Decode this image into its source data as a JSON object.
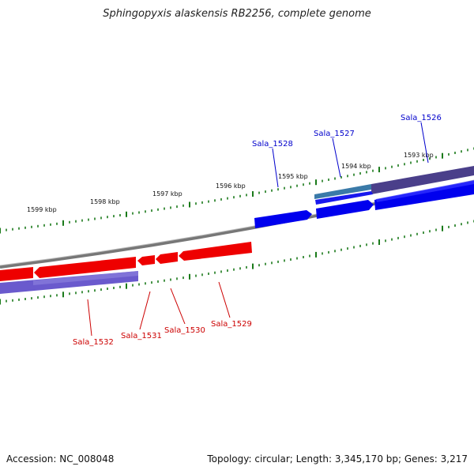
{
  "title": "Sphingopyxis alaskensis RB2256, complete genome",
  "accession": "Accession: NC_008048",
  "summary": "Topology: circular; Length: 3,345,170 bp; Genes: 3,217",
  "colors": {
    "forward_gene": "#0000ee",
    "reverse_gene": "#ee0000",
    "tick": "#1a7a1a",
    "backbone": "#888888",
    "forward_label": "#0000cc",
    "reverse_label": "#cc0000"
  },
  "kbp_labels": {
    "k1593": "1593 kbp",
    "k1594": "1594 kbp",
    "k1595": "1595 kbp",
    "k1596": "1596 kbp",
    "k1597": "1597 kbp",
    "k1598": "1598 kbp",
    "k1599": "1599 kbp"
  },
  "genes": {
    "sala_1526": "Sala_1526",
    "sala_1527": "Sala_1527",
    "sala_1528": "Sala_1528",
    "sala_1529": "Sala_1529",
    "sala_1530": "Sala_1530",
    "sala_1531": "Sala_1531",
    "sala_1532": "Sala_1532"
  }
}
